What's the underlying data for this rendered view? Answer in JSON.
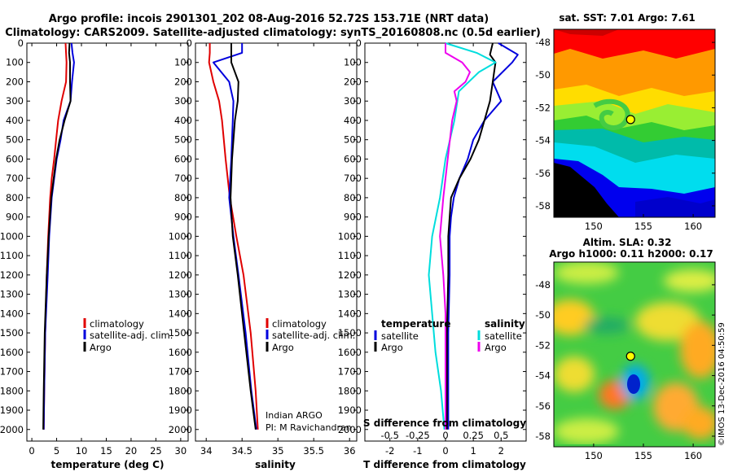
{
  "title_line1": "Argo profile: incois 2901301_202 08-Aug-2016 52.72S 153.71E (NRT data)",
  "title_line2": "Climatology: CARS2009. Satellite-adjusted climatology: synTS_20160808.nc (0.5d earlier)",
  "watermark": "©IMOS 13-Dec-2016 04:50:59",
  "colors": {
    "climatology": "#e00000",
    "satellite": "#0000dd",
    "argo": "#000000",
    "sat_s": "#00dddd",
    "argo_s": "#ee00ee"
  },
  "chart_data": [
    {
      "type": "line",
      "name": "temperature-profile",
      "xlabel": "temperature (deg C)",
      "ylabel": "depth",
      "xlim": [
        -1,
        31.5
      ],
      "ylim": [
        2060,
        0
      ],
      "xticks": [
        "0",
        "5",
        "10",
        "15",
        "20",
        "25",
        "30"
      ],
      "xtick_values": [
        0,
        5,
        10,
        15,
        20,
        25,
        30
      ],
      "yticks": [
        "0",
        "100",
        "200",
        "300",
        "400",
        "500",
        "600",
        "700",
        "800",
        "900",
        "1000",
        "1100",
        "1200",
        "1300",
        "1400",
        "1500",
        "1600",
        "1700",
        "1800",
        "1900",
        "2000"
      ],
      "legend": [
        "climatology",
        "satellite-adj. clim.",
        "Argo"
      ],
      "series": [
        {
          "name": "climatology",
          "color_key": "climatology",
          "depth": [
            0,
            50,
            100,
            200,
            300,
            400,
            500,
            600,
            700,
            800,
            1000,
            1200,
            1500,
            1800,
            2000
          ],
          "values": [
            6.8,
            6.9,
            7.0,
            6.9,
            6.0,
            5.3,
            4.9,
            4.5,
            4.0,
            3.7,
            3.3,
            3.0,
            2.7,
            2.5,
            2.4
          ]
        },
        {
          "name": "satellite-adj. clim.",
          "color_key": "satellite",
          "depth": [
            0,
            50,
            100,
            200,
            300,
            400,
            500,
            600,
            700,
            800,
            1000,
            1200,
            1500,
            1800,
            2000
          ],
          "values": [
            8.0,
            8.2,
            8.5,
            8.1,
            7.8,
            6.4,
            5.8,
            5.0,
            4.5,
            4.0,
            3.5,
            3.2,
            2.7,
            2.5,
            2.4
          ]
        },
        {
          "name": "Argo",
          "color_key": "argo",
          "depth": [
            0,
            50,
            100,
            200,
            300,
            400,
            500,
            600,
            700,
            800,
            1000,
            1200,
            1500,
            1800,
            2000
          ],
          "values": [
            7.6,
            7.5,
            7.7,
            7.7,
            7.8,
            6.6,
            5.6,
            4.9,
            4.4,
            3.9,
            3.4,
            3.0,
            2.6,
            2.4,
            2.3
          ]
        }
      ]
    },
    {
      "type": "line",
      "name": "salinity-profile",
      "xlabel": "salinity",
      "ylabel": "depth",
      "xlim": [
        33.85,
        36.1
      ],
      "ylim": [
        2060,
        0
      ],
      "xticks": [
        "34",
        "34.5",
        "35",
        "35.5",
        "36"
      ],
      "xtick_values": [
        34,
        34.5,
        35,
        35.5,
        36
      ],
      "legend": [
        "climatology",
        "satellite-adj. clim.",
        "Argo"
      ],
      "annotations": [
        "Indian ARGO",
        "PI: M Ravichandran"
      ],
      "series": [
        {
          "name": "climatology",
          "color_key": "climatology",
          "depth": [
            0,
            50,
            100,
            200,
            300,
            400,
            600,
            800,
            1000,
            1200,
            1500,
            1800,
            2000
          ],
          "values": [
            34.05,
            34.05,
            34.04,
            34.1,
            34.18,
            34.22,
            34.27,
            34.33,
            34.42,
            34.52,
            34.62,
            34.69,
            34.72
          ]
        },
        {
          "name": "satellite-adj. clim.",
          "color_key": "satellite",
          "depth": [
            0,
            50,
            100,
            200,
            300,
            400,
            600,
            800,
            1000,
            1200,
            1500,
            1800,
            2000
          ],
          "values": [
            34.5,
            34.5,
            34.1,
            34.32,
            34.38,
            34.37,
            34.35,
            34.32,
            34.38,
            34.45,
            34.55,
            34.63,
            34.7
          ]
        },
        {
          "name": "Argo",
          "color_key": "argo",
          "depth": [
            0,
            50,
            100,
            200,
            300,
            400,
            600,
            800,
            1000,
            1200,
            1500,
            1800,
            2000
          ],
          "values": [
            34.35,
            34.35,
            34.35,
            34.45,
            34.44,
            34.4,
            34.36,
            34.34,
            34.37,
            34.44,
            34.53,
            34.62,
            34.69
          ]
        }
      ]
    },
    {
      "type": "line",
      "name": "difference-profile",
      "xlabel": "T difference from climatology",
      "xlabel_top": "S difference from climatology",
      "ylabel": "depth",
      "xlim": [
        -2.9,
        2.9
      ],
      "ylim": [
        2060,
        0
      ],
      "xticks": [
        "-2",
        "-1",
        "0",
        "1",
        "2"
      ],
      "xtick_values": [
        -2,
        -1,
        0,
        1,
        2
      ],
      "s_xticks": [
        "-0.5",
        "-0.25",
        "0",
        "0.25",
        "0.5"
      ],
      "s_xtick_values": [
        -0.5,
        -0.25,
        0,
        0.25,
        0.5
      ],
      "legend_t_title": "temperature",
      "legend_s_title": "salinity",
      "legend_t": [
        "satellite",
        "Argo"
      ],
      "legend_s": [
        "satellite",
        "Argo"
      ],
      "series": [
        {
          "name": "T satellite",
          "color_key": "satellite",
          "depth": [
            0,
            60,
            100,
            200,
            300,
            400,
            500,
            600,
            700,
            800,
            900,
            1000,
            1200,
            1500,
            1800,
            2000
          ],
          "values": [
            1.9,
            2.6,
            2.4,
            1.7,
            2.0,
            1.4,
            1.0,
            0.8,
            0.5,
            0.3,
            0.2,
            0.15,
            0.15,
            0.1,
            0.1,
            0.1
          ]
        },
        {
          "name": "T Argo",
          "color_key": "argo",
          "depth": [
            0,
            60,
            100,
            200,
            300,
            400,
            500,
            600,
            700,
            800,
            900,
            1000,
            1200,
            1500,
            1800,
            2000
          ],
          "values": [
            1.7,
            1.6,
            1.8,
            1.7,
            1.6,
            1.4,
            1.2,
            0.9,
            0.5,
            0.2,
            0.15,
            0.1,
            0.1,
            0.05,
            0.05,
            0.05
          ]
        },
        {
          "name": "S satellite",
          "color_key": "sat_s",
          "depth": [
            0,
            50,
            100,
            150,
            250,
            400,
            600,
            800,
            1000,
            1200,
            1400,
            1600,
            1800,
            2000
          ],
          "values": [
            0.0,
            0.28,
            0.45,
            0.3,
            0.12,
            0.08,
            0.0,
            -0.05,
            -0.12,
            -0.15,
            -0.12,
            -0.09,
            -0.04,
            -0.01
          ]
        },
        {
          "name": "S Argo",
          "color_key": "argo_s",
          "depth": [
            0,
            50,
            100,
            150,
            200,
            250,
            300,
            400,
            600,
            800,
            1000,
            1200,
            1400,
            1600,
            1800,
            2000
          ],
          "values": [
            0.0,
            0.0,
            0.15,
            0.22,
            0.18,
            0.08,
            0.1,
            0.06,
            0.02,
            -0.02,
            -0.05,
            -0.02,
            0.0,
            0.0,
            0.0,
            0.0
          ]
        }
      ]
    },
    {
      "type": "heatmap",
      "name": "sst-map",
      "title": "sat. SST: 7.01 Argo: 7.61",
      "xticks": [
        "150",
        "155",
        "160"
      ],
      "xtick_values": [
        150,
        155,
        160
      ],
      "yticks": [
        "-48",
        "-50",
        "-52",
        "-54",
        "-56",
        "-58"
      ],
      "ytick_values": [
        -48,
        -50,
        -52,
        -54,
        -56,
        -58
      ],
      "xlim": [
        146,
        162.2
      ],
      "ylim": [
        -58.7,
        -47.2
      ],
      "marker": {
        "lon": 153.71,
        "lat": -52.72
      }
    },
    {
      "type": "heatmap",
      "name": "sla-map",
      "title_line1": "Altim. SLA: 0.32",
      "title_line2": "Argo h1000: 0.11 h2000: 0.17",
      "xticks": [
        "150",
        "155",
        "160"
      ],
      "xtick_values": [
        150,
        155,
        160
      ],
      "yticks": [
        "-48",
        "-50",
        "-52",
        "-54",
        "-56",
        "-58"
      ],
      "ytick_values": [
        -48,
        -50,
        -52,
        -54,
        -56,
        -58
      ],
      "xlim": [
        146,
        162.2
      ],
      "ylim": [
        -58.7,
        -46.5
      ],
      "marker": {
        "lon": 153.71,
        "lat": -52.72
      }
    }
  ]
}
